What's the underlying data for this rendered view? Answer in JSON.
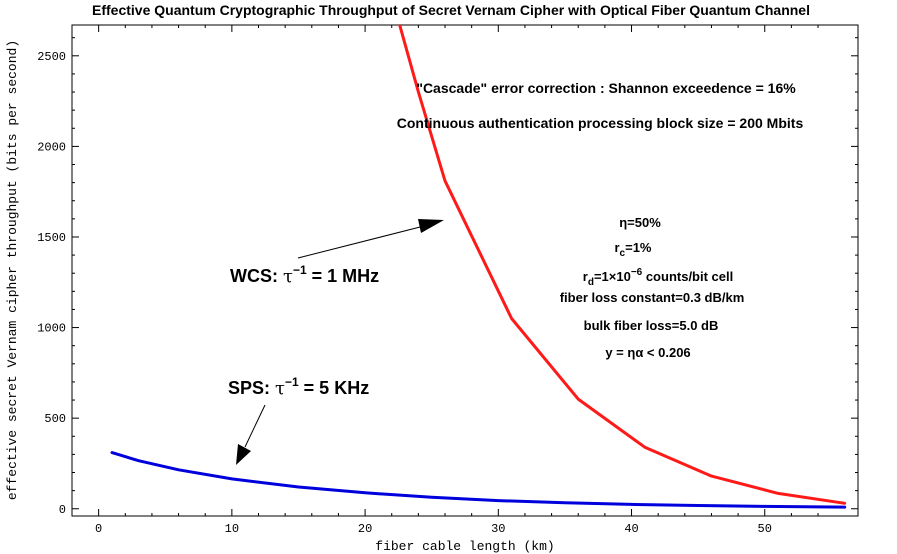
{
  "chart_data": {
    "type": "line",
    "title": "Effective Quantum Cryptographic Throughput of Secret Vernam Cipher with Optical Fiber Quantum Channel",
    "xlabel": "fiber cable length (km)",
    "ylabel": "effective secret Vernam cipher throughput (bits per second)",
    "xlim": [
      -2,
      57
    ],
    "ylim": [
      -40,
      2670
    ],
    "xticks": [
      0,
      10,
      20,
      30,
      40,
      50
    ],
    "yticks": [
      0,
      500,
      1000,
      1500,
      2000,
      2500
    ],
    "grid": false,
    "series": [
      {
        "name": "WCS",
        "color": "#ff1a1a",
        "x": [
          22.6,
          24,
          26,
          31,
          36,
          41,
          46,
          51,
          56
        ],
        "y": [
          2670,
          2300,
          1810,
          1050,
          605,
          340,
          180,
          85,
          30
        ]
      },
      {
        "name": "SPS",
        "color": "#0000dd",
        "x": [
          1,
          3,
          6,
          10,
          15,
          20,
          25,
          30,
          35,
          40,
          45,
          50,
          56
        ],
        "y": [
          310,
          265,
          215,
          165,
          120,
          88,
          63,
          45,
          33,
          24,
          18,
          13,
          9
        ]
      }
    ],
    "annotations": {
      "wcs_label": {
        "prefix": "WCS: ",
        "tau": "τ",
        "sup": "−1",
        "suffix": " = 1 MHz"
      },
      "sps_label": {
        "prefix": "SPS: ",
        "tau": "τ",
        "sup": "−1",
        "suffix": " = 5 KHz"
      },
      "line1": "\"Cascade\" error correction : Shannon exceedence = 16%",
      "line2": "Continuous authentication processing block size = 200 Mbits",
      "params": {
        "eta": "η=50%",
        "rc_main": "r",
        "rc_sub": "c",
        "rc_val": "=1%",
        "rd_main": "r",
        "rd_sub": "d",
        "rd_val": "=1×10",
        "rd_exp": "−6",
        "rd_tail": " counts/bit cell",
        "fiber_loss": "fiber loss constant=0.3 dB/km",
        "bulk_loss": "bulk fiber loss=5.0 dB",
        "y_limit": "y = ηα < 0.206"
      }
    }
  }
}
